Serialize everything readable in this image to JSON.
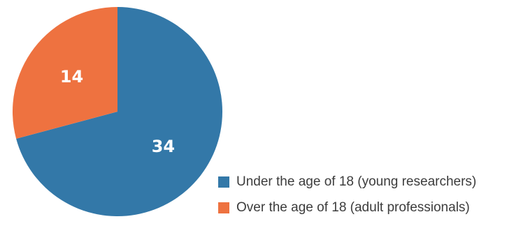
{
  "chart_data": {
    "type": "pie",
    "title": "",
    "legend_position": "bottom-right",
    "slices": [
      {
        "label": "Under the age of 18 (young researchers)",
        "value": 34,
        "value_label": "34",
        "color": "#3378a8"
      },
      {
        "label": "Over the age of 18 (adult professionals)",
        "value": 14,
        "value_label": "14",
        "color": "#ee7240"
      }
    ]
  },
  "legend": {
    "items": [
      {
        "label": "Under the age of 18 (young researchers)",
        "color": "#3378a8"
      },
      {
        "label": "Over the age of 18 (adult professionals)",
        "color": "#ee7240"
      }
    ]
  }
}
